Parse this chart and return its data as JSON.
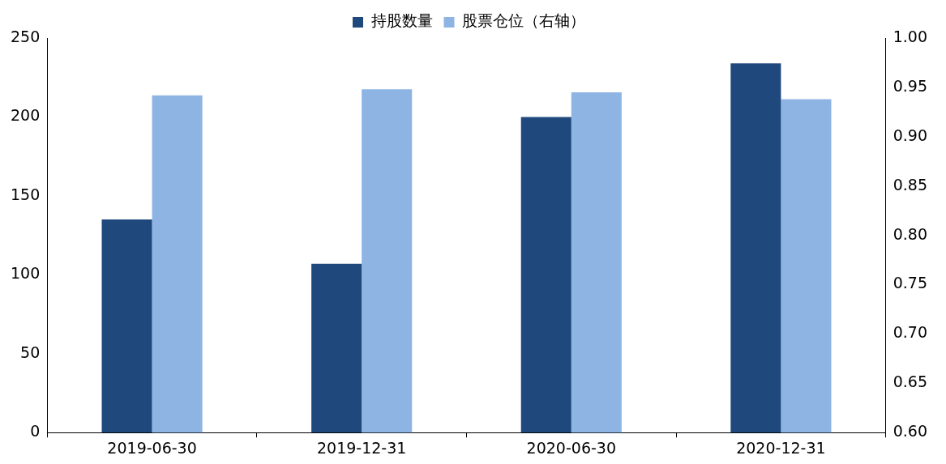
{
  "chart_data": {
    "type": "bar",
    "categories": [
      "2019-06-30",
      "2019-12-31",
      "2020-06-30",
      "2020-12-31"
    ],
    "series": [
      {
        "name": "持股数量",
        "color": "#1f497d",
        "values": [
          135,
          107,
          200,
          234
        ]
      },
      {
        "name": "股票仓位（右轴）",
        "color": "#8eb4e3",
        "values": [
          0.942,
          0.948,
          0.945,
          0.938
        ],
        "axis": "y2"
      }
    ],
    "ylim": [
      0,
      250
    ],
    "yticks": [
      0,
      50,
      100,
      150,
      200,
      250
    ],
    "y2lim": [
      0.6,
      1.0
    ],
    "y2ticks": [
      {
        "value": 0.6,
        "label": "0.60"
      },
      {
        "value": 0.65,
        "label": "0.65"
      },
      {
        "value": 0.7,
        "label": "0.70"
      },
      {
        "value": 0.75,
        "label": "0.75"
      },
      {
        "value": 0.8,
        "label": "0.80"
      },
      {
        "value": 0.85,
        "label": "0.85"
      },
      {
        "value": 0.9,
        "label": "0.90"
      },
      {
        "value": 0.95,
        "label": "0.95"
      },
      {
        "value": 1.0,
        "label": "1.00"
      }
    ],
    "grid": false,
    "legend": "top"
  }
}
